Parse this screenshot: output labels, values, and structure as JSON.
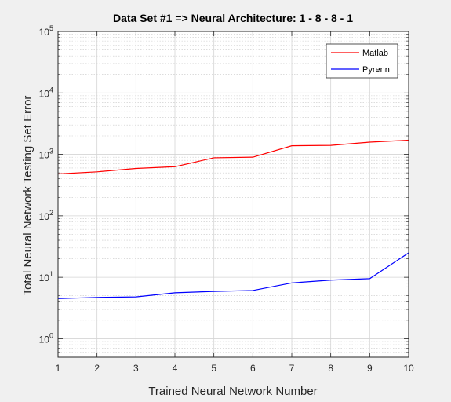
{
  "chart_data": {
    "type": "line",
    "title": "Data Set #1 => Neural Architecture: 1 - 8 - 8 - 1",
    "xlabel": "Trained Neural Network Number",
    "ylabel": "Total Neural Network Testing Set Error",
    "x": [
      1,
      2,
      3,
      4,
      5,
      6,
      7,
      8,
      9,
      10
    ],
    "xlim": [
      1,
      10
    ],
    "xticks": [
      "1",
      "2",
      "3",
      "4",
      "5",
      "6",
      "7",
      "8",
      "9",
      "10"
    ],
    "yscale": "log",
    "ylim": [
      0.5,
      100000
    ],
    "yticks": [
      {
        "base": "10",
        "exp": "0"
      },
      {
        "base": "10",
        "exp": "1"
      },
      {
        "base": "10",
        "exp": "2"
      },
      {
        "base": "10",
        "exp": "3"
      },
      {
        "base": "10",
        "exp": "4"
      },
      {
        "base": "10",
        "exp": "5"
      }
    ],
    "grid": true,
    "legend_position": "top-right",
    "series": [
      {
        "name": "Matlab",
        "color": "#ff0000",
        "values": [
          480,
          520,
          590,
          630,
          880,
          900,
          1380,
          1400,
          1580,
          1700
        ]
      },
      {
        "name": "Pyrenn",
        "color": "#0000ff",
        "values": [
          4.5,
          4.7,
          4.8,
          5.6,
          5.9,
          6.1,
          8.1,
          9.0,
          9.5,
          25
        ]
      }
    ]
  }
}
